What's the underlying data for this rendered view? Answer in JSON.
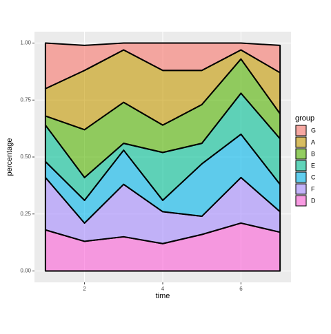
{
  "chart_data": {
    "type": "area",
    "stacked": true,
    "x_label": "time",
    "y_label": "percentage",
    "legend_title": "group",
    "x": [
      1,
      2,
      3,
      4,
      5,
      6,
      7
    ],
    "series": [
      {
        "name": "D",
        "color": "#FB61D7",
        "values": [
          0.18,
          0.13,
          0.15,
          0.12,
          0.16,
          0.21,
          0.17
        ]
      },
      {
        "name": "F",
        "color": "#A58AFF",
        "values": [
          0.23,
          0.08,
          0.23,
          0.14,
          0.08,
          0.2,
          0.09
        ]
      },
      {
        "name": "C",
        "color": "#00B6EB",
        "values": [
          0.07,
          0.1,
          0.15,
          0.05,
          0.23,
          0.19,
          0.12
        ]
      },
      {
        "name": "E",
        "color": "#00C094",
        "values": [
          0.16,
          0.1,
          0.03,
          0.21,
          0.09,
          0.18,
          0.2
        ]
      },
      {
        "name": "B",
        "color": "#53B400",
        "values": [
          0.04,
          0.21,
          0.18,
          0.12,
          0.17,
          0.15,
          0.11
        ]
      },
      {
        "name": "A",
        "color": "#C49A00",
        "values": [
          0.12,
          0.26,
          0.23,
          0.24,
          0.15,
          0.04,
          0.18
        ]
      },
      {
        "name": "G",
        "color": "#F8766D",
        "values": [
          0.2,
          0.11,
          0.03,
          0.12,
          0.12,
          0.03,
          0.12
        ]
      }
    ],
    "xlim": [
      0.72,
      7.28
    ],
    "xticks": [
      2,
      4,
      6
    ],
    "ylim": [
      -0.05,
      1.05
    ],
    "yticks": [
      {
        "value": 0,
        "label": "0.00"
      },
      {
        "value": 0.25,
        "label": "0.25"
      },
      {
        "value": 0.5,
        "label": "0.50"
      },
      {
        "value": 0.75,
        "label": "0.75"
      },
      {
        "value": 1,
        "label": "1.00"
      }
    ],
    "grid": true,
    "fill_opacity": 0.6,
    "legend_position": "right"
  }
}
